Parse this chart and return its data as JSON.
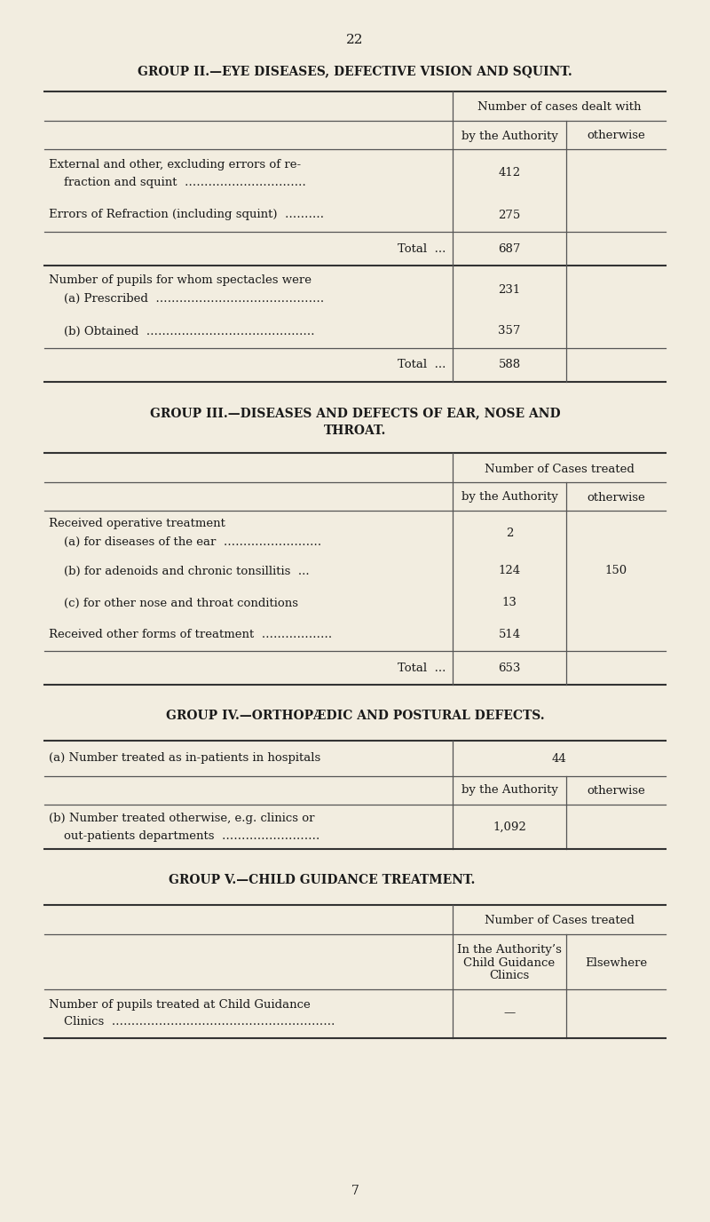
{
  "bg_color": "#f2ede0",
  "text_color": "#1a1a1a",
  "page_number": "22",
  "group2_title": "GROUP II.—EYE DISEASES, DEFECTIVE VISION AND SQUINT.",
  "group2_col_header": "Number of cases dealt with",
  "group2_col1": "by the Authority",
  "group2_col2": "otherwise",
  "group2_rows": [
    {
      "label1": "External and other, excluding errors of re-",
      "label2": "    fraction and squint  ………………………….",
      "val1": "412",
      "val2": "",
      "two_line": true
    },
    {
      "label1": "Errors of Refraction (including squint)  ……….",
      "val1": "275",
      "val2": "",
      "two_line": false
    },
    {
      "label1": "Total  ...",
      "val1": "687",
      "val2": "",
      "total": true,
      "two_line": false
    },
    {
      "label1": "Number of pupils for whom spectacles were",
      "label2": "    (a) Prescribed  …………………………………….",
      "val1": "231",
      "val2": "",
      "two_line": true
    },
    {
      "label1": "    (b) Obtained  …………………………………….",
      "val1": "357",
      "val2": "",
      "two_line": false
    },
    {
      "label1": "Total  ...",
      "val1": "588",
      "val2": "",
      "total": true,
      "two_line": false
    }
  ],
  "group3_title1": "GROUP III.—DISEASES AND DEFECTS OF EAR, NOSE AND",
  "group3_title2": "THROAT.",
  "group3_col_header": "Number of Cases treated",
  "group3_col1": "by the Authority",
  "group3_col2": "otherwise",
  "group3_rows": [
    {
      "label1": "Received operative treatment",
      "label2": "    (a) for diseases of the ear  …………………….",
      "val1": "2",
      "val2": "",
      "two_line": true
    },
    {
      "label1": "    (b) for adenoids and chronic tonsillitis  ...",
      "val1": "124",
      "val2": "150",
      "two_line": false
    },
    {
      "label1": "    (c) for other nose and throat conditions",
      "val1": "13",
      "val2": "",
      "two_line": false
    },
    {
      "label1": "Received other forms of treatment  ………………",
      "val1": "514",
      "val2": "",
      "two_line": false
    },
    {
      "label1": "Total  ...",
      "val1": "653",
      "val2": "",
      "total": true,
      "two_line": false
    }
  ],
  "group4_title": "GROUP IV.—ORTHOPÆDIC AND POSTURAL DEFECTS.",
  "group4_row_a_label": "(a) Number treated as in-patients in hospitals",
  "group4_row_a_val": "44",
  "group4_col1": "by the Authority",
  "group4_col2": "otherwise",
  "group4_row_b_label1": "(b) Number treated otherwise, e.g. clinics or",
  "group4_row_b_label2": "    out-patients departments  …………………….",
  "group4_row_b_val1": "1,092",
  "group5_title": "GROUP V.—CHILD GUIDANCE TREATMENT.",
  "group5_col_header": "Number of Cases treated",
  "group5_col1_line1": "In the Authority’s",
  "group5_col1_line2": "Child Guidance",
  "group5_col1_line3": "Clinics",
  "group5_col2": "Elsewhere",
  "group5_row_label1": "Number of pupils treated at Child Guidance",
  "group5_row_label2": "    Clinics  …………………………………………………",
  "group5_row_val1": "—",
  "footnote": "7"
}
